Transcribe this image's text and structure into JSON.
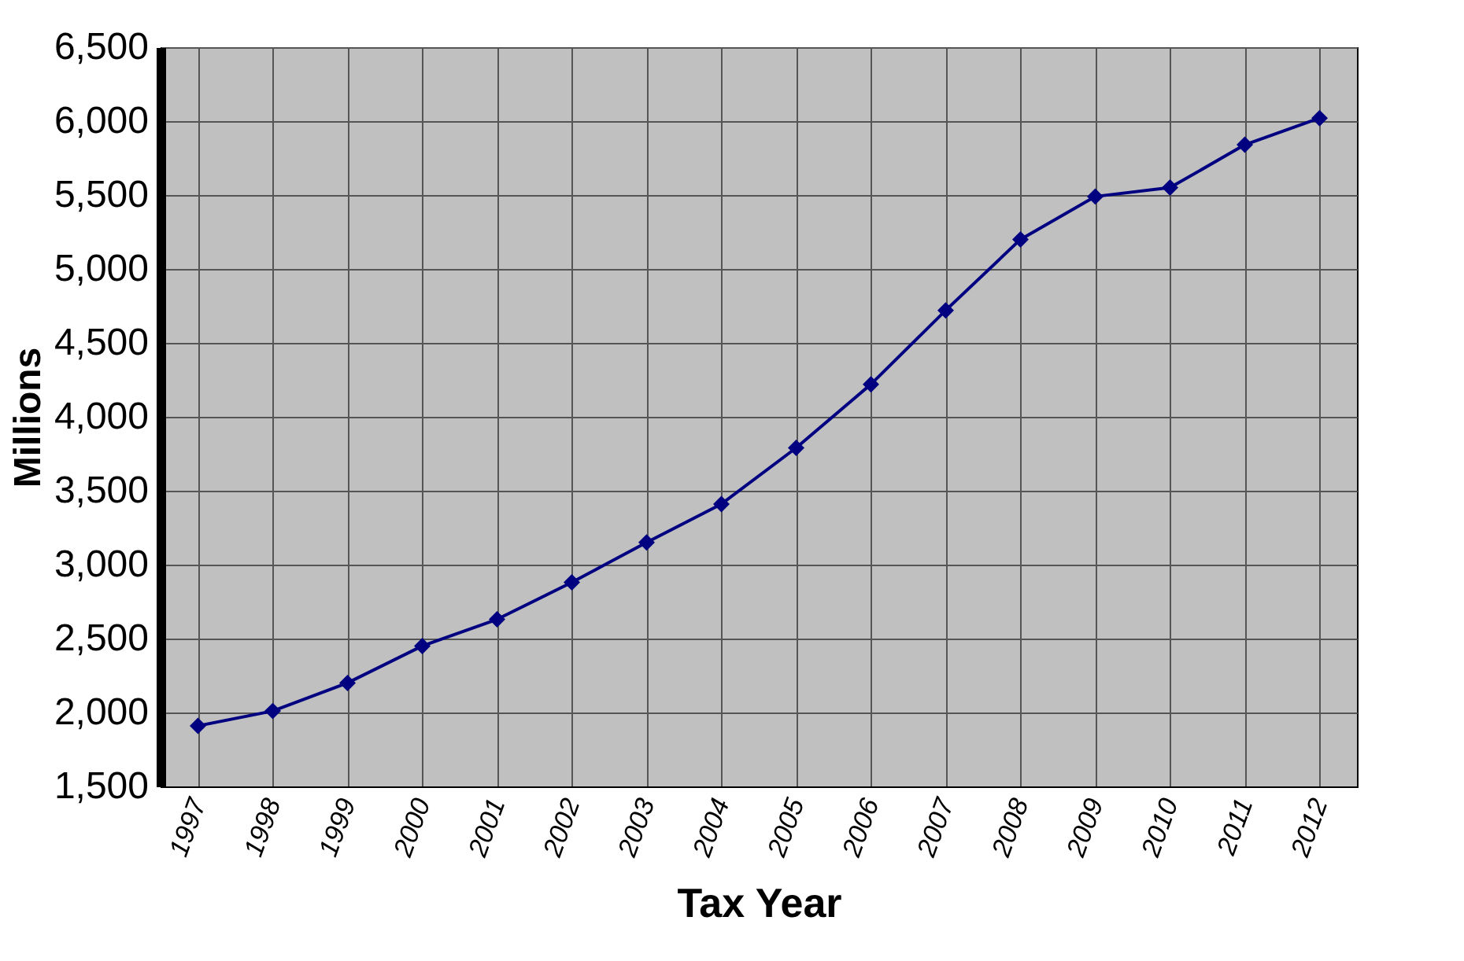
{
  "chart_data": {
    "type": "line",
    "xlabel": "Tax Year",
    "ylabel": "Millions",
    "categories": [
      "1997",
      "1998",
      "1999",
      "2000",
      "2001",
      "2002",
      "2003",
      "2004",
      "2005",
      "2006",
      "2007",
      "2008",
      "2009",
      "2010",
      "2011",
      "2012"
    ],
    "series": [
      {
        "color": "#000080",
        "values": [
          1910,
          2010,
          2200,
          2450,
          2630,
          2880,
          3150,
          3410,
          3790,
          4220,
          4720,
          5200,
          5490,
          5550,
          5840,
          6020
        ]
      }
    ],
    "ylim": [
      1500,
      6500
    ],
    "yticks": [
      {
        "value": 1500,
        "label": "1,500"
      },
      {
        "value": 2000,
        "label": "2,000"
      },
      {
        "value": 2500,
        "label": "2,500"
      },
      {
        "value": 3000,
        "label": "3,000"
      },
      {
        "value": 3500,
        "label": "3,500"
      },
      {
        "value": 4000,
        "label": "4,000"
      },
      {
        "value": 4500,
        "label": "4,500"
      },
      {
        "value": 5000,
        "label": "5,000"
      },
      {
        "value": 5500,
        "label": "5,500"
      },
      {
        "value": 6000,
        "label": "6,000"
      },
      {
        "value": 6500,
        "label": "6,500"
      }
    ],
    "grid": true,
    "marker": "diamond",
    "line_style": "solid"
  }
}
